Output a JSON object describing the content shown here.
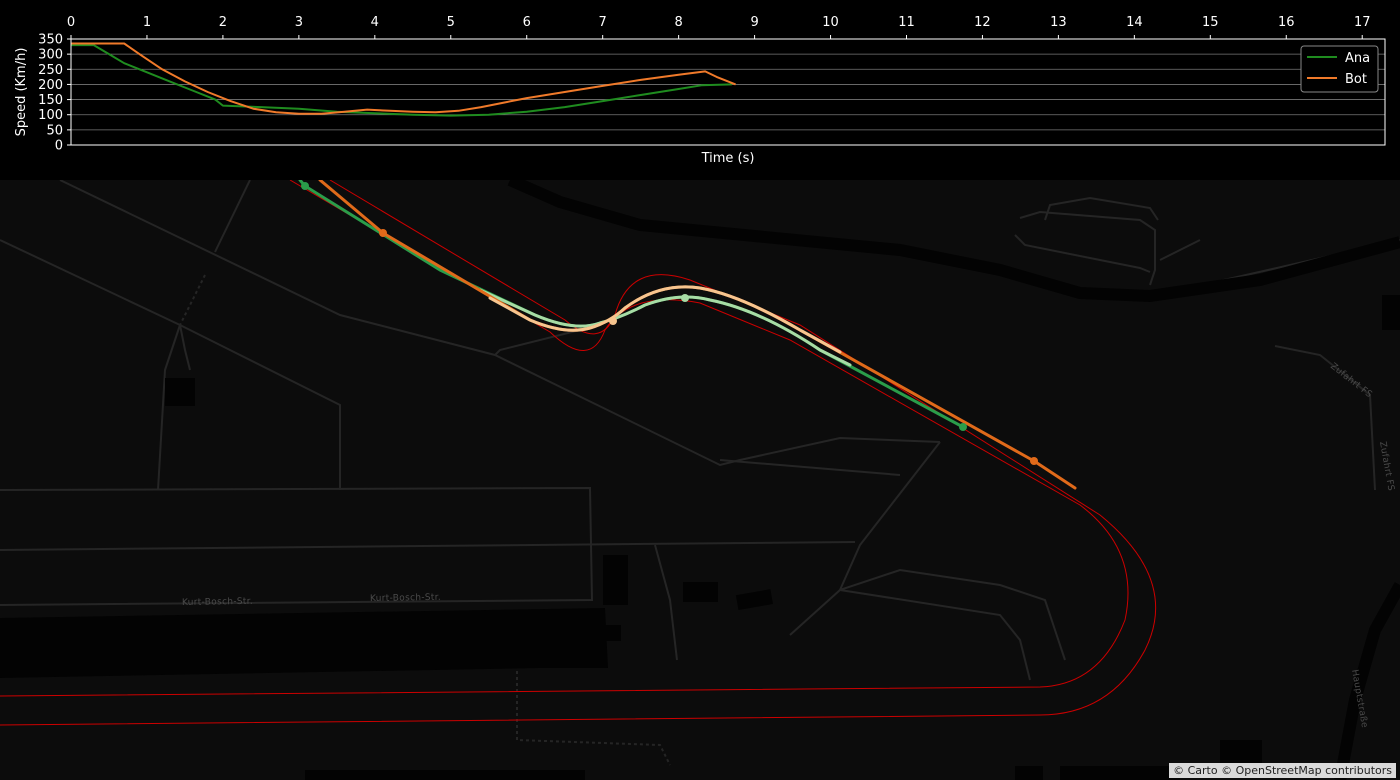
{
  "chart_data": {
    "type": "line",
    "title": "",
    "xlabel": "Time (s)",
    "ylabel": "Speed (Km/h)",
    "xlim": [
      0,
      17.3
    ],
    "ylim": [
      0,
      350
    ],
    "x_ticks": [
      0,
      1,
      2,
      3,
      4,
      5,
      6,
      7,
      8,
      9,
      10,
      11,
      12,
      13,
      14,
      15,
      16,
      17
    ],
    "y_ticks": [
      0,
      50,
      100,
      150,
      200,
      250,
      300,
      350
    ],
    "x_tick_position": "top",
    "grid": "horizontal",
    "legend_position": "top-right",
    "series": [
      {
        "name": "Ana",
        "color": "#1f8c1f",
        "points": [
          [
            0,
            330
          ],
          [
            0.3,
            330
          ],
          [
            0.5,
            300
          ],
          [
            0.7,
            270
          ],
          [
            1.0,
            240
          ],
          [
            1.3,
            210
          ],
          [
            1.6,
            180
          ],
          [
            1.9,
            150
          ],
          [
            2.0,
            130
          ],
          [
            2.5,
            125
          ],
          [
            3.0,
            120
          ],
          [
            3.5,
            110
          ],
          [
            4.0,
            105
          ],
          [
            4.5,
            100
          ],
          [
            5.0,
            97
          ],
          [
            5.5,
            100
          ],
          [
            6.0,
            110
          ],
          [
            6.5,
            125
          ],
          [
            7.0,
            145
          ],
          [
            7.5,
            165
          ],
          [
            8.0,
            185
          ],
          [
            8.3,
            197
          ],
          [
            8.7,
            200
          ]
        ]
      },
      {
        "name": "Bot",
        "color": "#f07a2a",
        "points": [
          [
            0,
            335
          ],
          [
            0.7,
            335
          ],
          [
            0.9,
            300
          ],
          [
            1.2,
            250
          ],
          [
            1.5,
            210
          ],
          [
            1.8,
            175
          ],
          [
            2.1,
            145
          ],
          [
            2.4,
            120
          ],
          [
            2.7,
            108
          ],
          [
            3.0,
            103
          ],
          [
            3.3,
            103
          ],
          [
            3.6,
            110
          ],
          [
            3.9,
            117
          ],
          [
            4.2,
            113
          ],
          [
            4.5,
            110
          ],
          [
            4.8,
            108
          ],
          [
            5.1,
            113
          ],
          [
            5.4,
            125
          ],
          [
            5.7,
            140
          ],
          [
            6.0,
            155
          ],
          [
            6.5,
            175
          ],
          [
            7.0,
            195
          ],
          [
            7.5,
            215
          ],
          [
            8.0,
            232
          ],
          [
            8.35,
            243
          ],
          [
            8.5,
            225
          ],
          [
            8.75,
            200
          ]
        ]
      }
    ]
  },
  "map": {
    "street_labels": [
      "Kurt-Bosch-Str.",
      "Kurt-Bosch-Str.",
      "Zufahrt FS",
      "Zufahrt FS",
      "Hauptstraße"
    ],
    "attribution": "© Carto © OpenStreetMap contributors",
    "track_color": "#cc0000",
    "ana_color": "#2a9d4a",
    "bot_color": "#e06a1a",
    "ana_highlight_color": "#a7dca5",
    "bot_highlight_color": "#f7c58f"
  }
}
